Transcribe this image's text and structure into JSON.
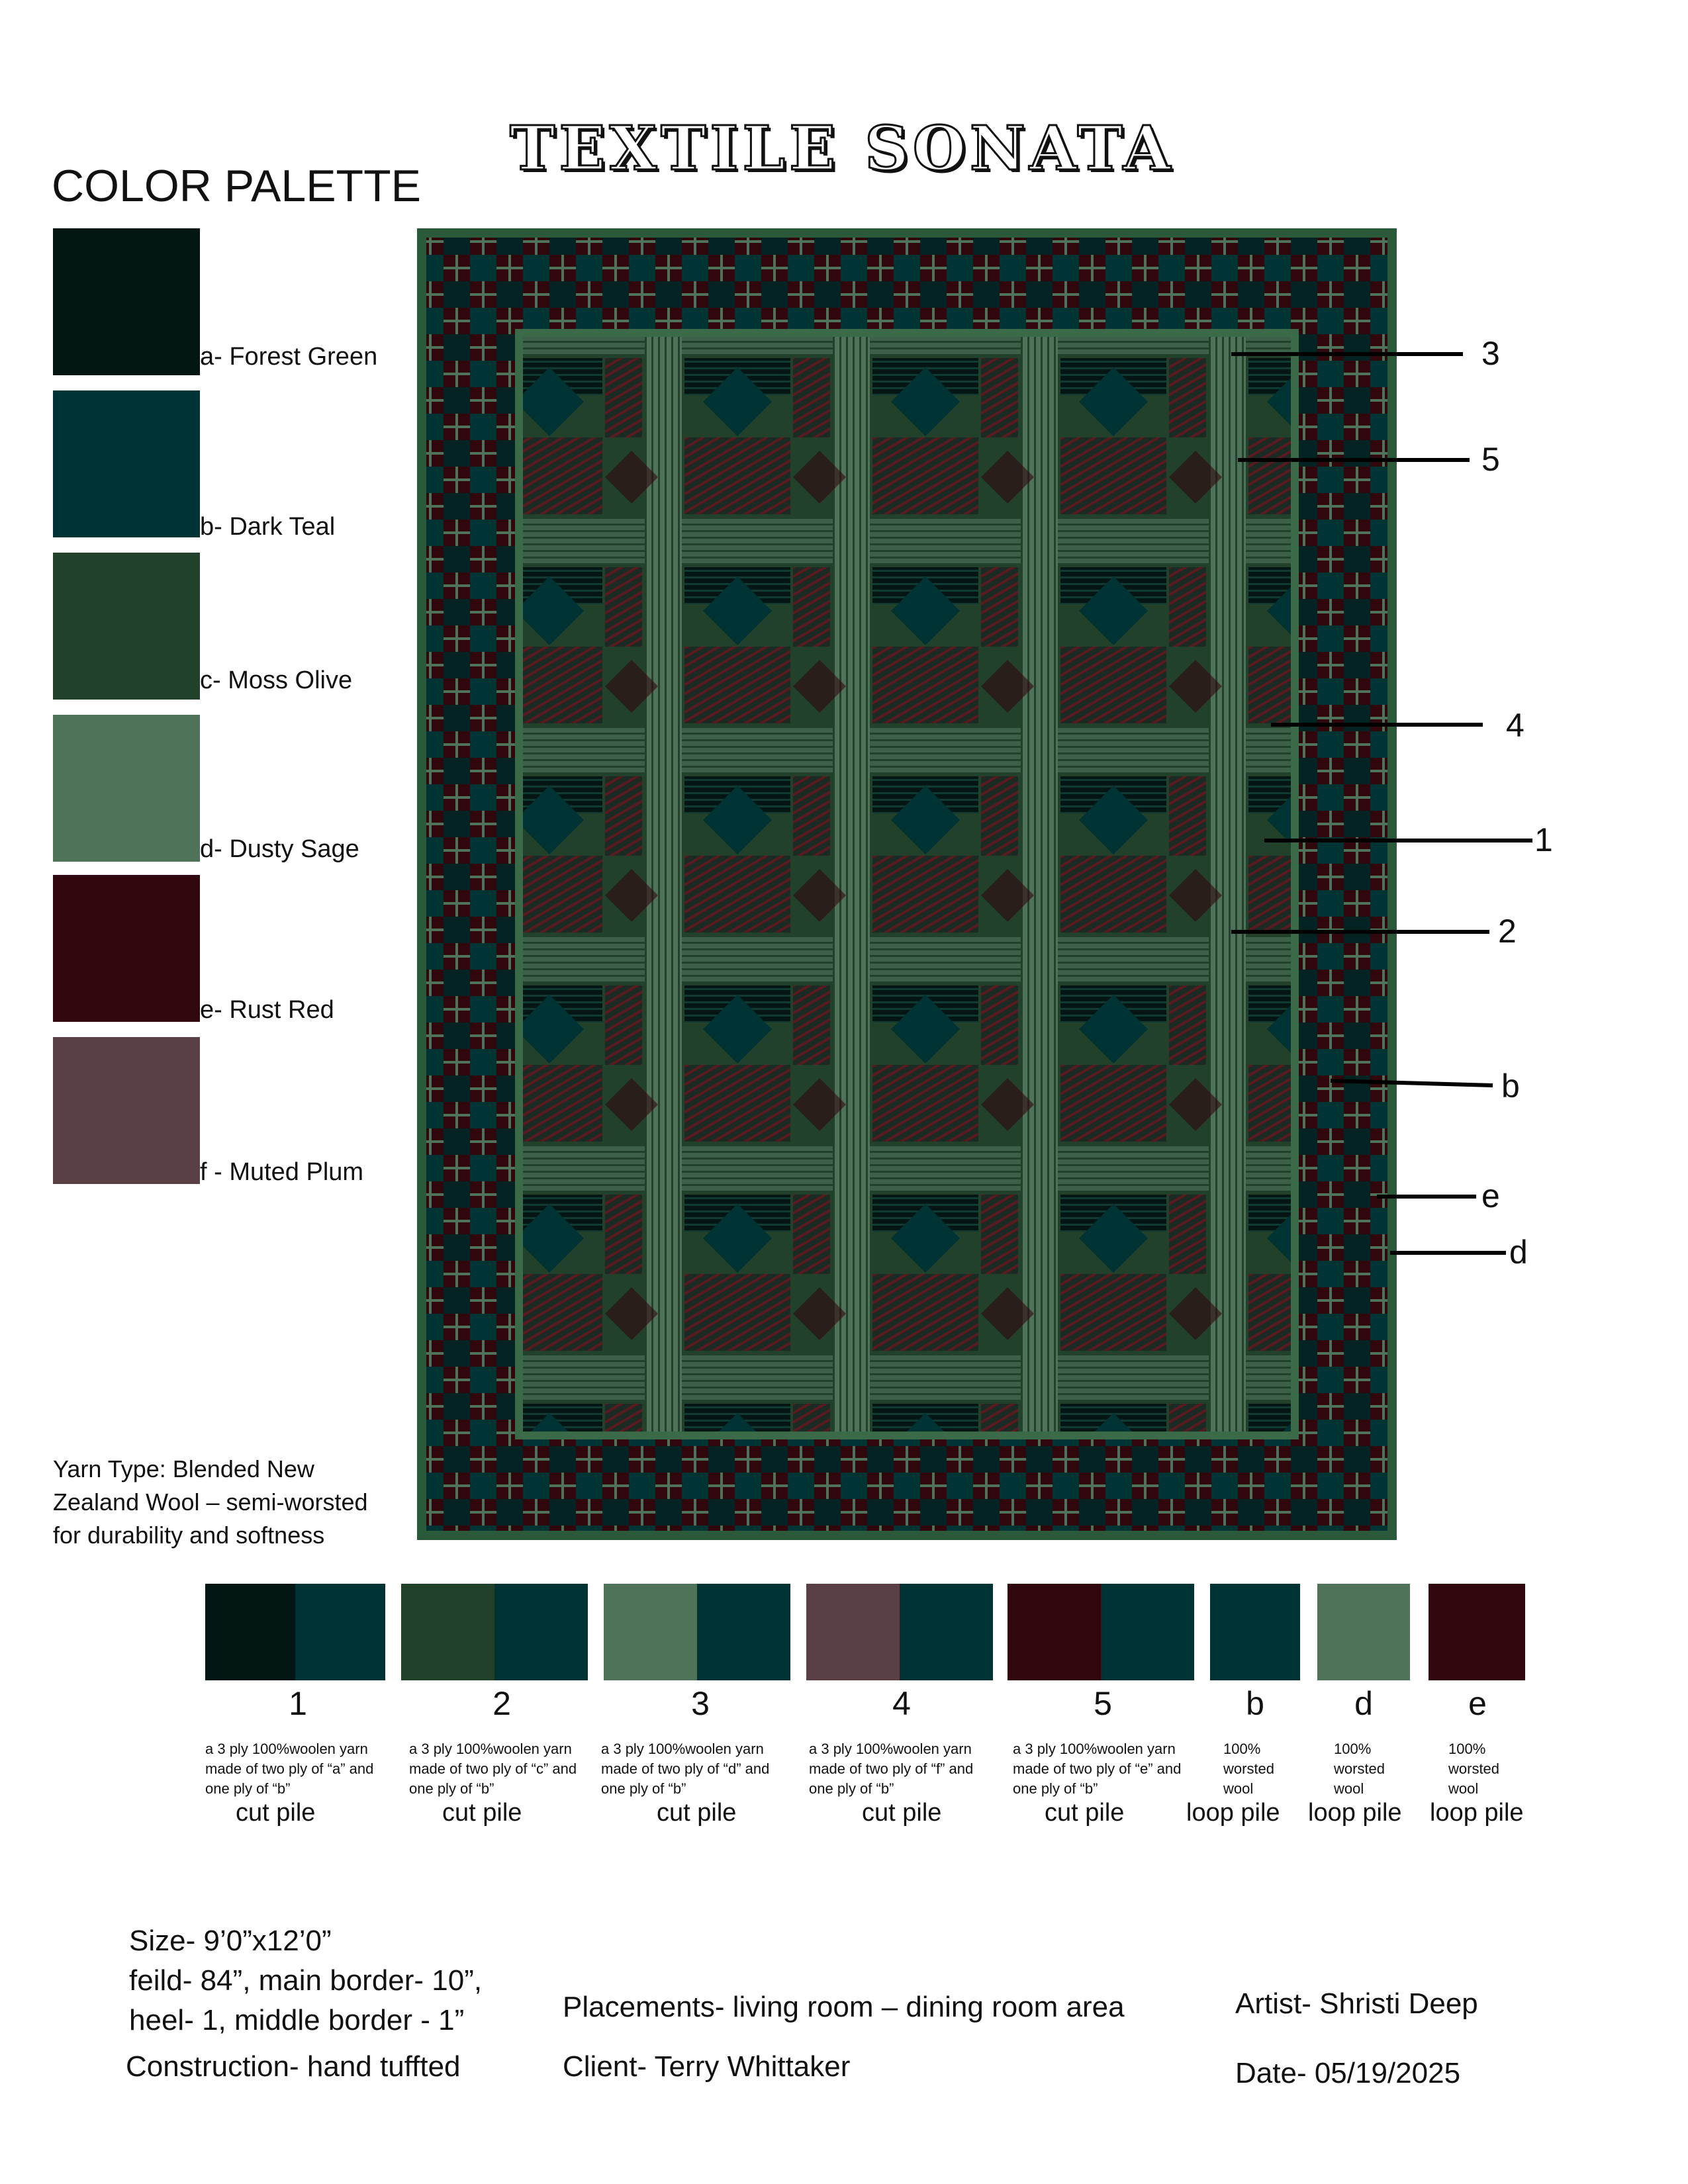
{
  "title": "TEXTILE SONATA",
  "palette": {
    "heading": "COLOR PALETTE",
    "colors": [
      {
        "label": "a- Forest Green",
        "hex": "#041613"
      },
      {
        "label": "b- Dark Teal",
        "hex": "#003333"
      },
      {
        "label": "c- Moss Olive",
        "hex": "#21412a"
      },
      {
        "label": "d- Dusty Sage",
        "hex": "#4f7359"
      },
      {
        "label": "e- Rust Red",
        "hex": "#2f070d"
      },
      {
        "label": "f - Muted Plum",
        "hex": "#5a4044"
      }
    ]
  },
  "yarn_type": "Yarn Type: Blended New Zealand Wool – semi-worsted for durability and softness",
  "callouts": [
    "3",
    "5",
    "4",
    "1",
    "2",
    "b",
    "e",
    "d"
  ],
  "yarns": [
    {
      "label": "1",
      "desc": "a 3 ply 100%woolen yarn made of two ply of “a” and one ply of “b”",
      "pile": "cut pile",
      "colors": [
        "#041613",
        "#003333"
      ]
    },
    {
      "label": "2",
      "desc": "a 3 ply 100%woolen yarn made of two ply of “c” and one ply of “b”",
      "pile": "cut pile",
      "colors": [
        "#21412a",
        "#003333"
      ]
    },
    {
      "label": "3",
      "desc": "a 3 ply 100%woolen yarn made of two ply of “d” and one ply of “b”",
      "pile": "cut pile",
      "colors": [
        "#4f7359",
        "#003333"
      ]
    },
    {
      "label": "4",
      "desc": "a 3 ply 100%woolen yarn made of two ply of “f” and one ply of “b”",
      "pile": "cut pile",
      "colors": [
        "#5a4044",
        "#003333"
      ]
    },
    {
      "label": "5",
      "desc": "a 3 ply 100%woolen yarn made of two ply of “e” and one ply of “b”",
      "pile": "cut pile",
      "colors": [
        "#2f070d",
        "#003333"
      ]
    },
    {
      "label": "b",
      "desc": "100% worsted wool",
      "pile": "loop pile",
      "colors": [
        "#003333"
      ]
    },
    {
      "label": "d",
      "desc": "100% worsted wool",
      "pile": "loop pile",
      "colors": [
        "#4f7359"
      ]
    },
    {
      "label": "e",
      "desc": "100% worsted wool",
      "pile": "loop pile",
      "colors": [
        "#2f070d"
      ]
    }
  ],
  "specs": {
    "size": "Size- 9’0”x12’0”",
    "field": "feild- 84”, main border- 10”,",
    "heel": "heel- 1, middle border - 1”",
    "construction": "Construction- hand tuffted",
    "placements": "Placements-  living room – dining room area",
    "client": "Client- Terry Whittaker",
    "artist": "Artist- Shristi Deep",
    "date": "Date- 05/19/2025"
  }
}
